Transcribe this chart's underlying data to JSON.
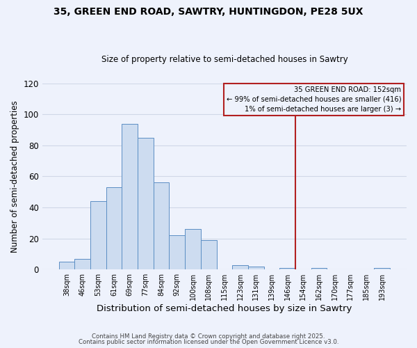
{
  "title1": "35, GREEN END ROAD, SAWTRY, HUNTINGDON, PE28 5UX",
  "title2": "Size of property relative to semi-detached houses in Sawtry",
  "xlabel": "Distribution of semi-detached houses by size in Sawtry",
  "ylabel": "Number of semi-detached properties",
  "bar_labels": [
    "38sqm",
    "46sqm",
    "53sqm",
    "61sqm",
    "69sqm",
    "77sqm",
    "84sqm",
    "92sqm",
    "100sqm",
    "108sqm",
    "115sqm",
    "123sqm",
    "131sqm",
    "139sqm",
    "146sqm",
    "154sqm",
    "162sqm",
    "170sqm",
    "177sqm",
    "185sqm",
    "193sqm"
  ],
  "bar_values": [
    5,
    7,
    44,
    53,
    94,
    85,
    56,
    22,
    26,
    19,
    0,
    3,
    2,
    0,
    1,
    0,
    1,
    0,
    0,
    0,
    1
  ],
  "bar_color": "#cddcf0",
  "bar_edge_color": "#5b8ec4",
  "ylim": [
    0,
    120
  ],
  "yticks": [
    0,
    20,
    40,
    60,
    80,
    100,
    120
  ],
  "vline_x_index": 15,
  "vline_color": "#b22020",
  "annotation_title": "35 GREEN END ROAD: 152sqm",
  "annotation_line1": "← 99% of semi-detached houses are smaller (416)",
  "annotation_line2": "1% of semi-detached houses are larger (3) →",
  "annotation_box_color": "#b22020",
  "footer1": "Contains HM Land Registry data © Crown copyright and database right 2025.",
  "footer2": "Contains public sector information licensed under the Open Government Licence v3.0.",
  "background_color": "#eef2fc",
  "grid_color": "#d0d8e8"
}
